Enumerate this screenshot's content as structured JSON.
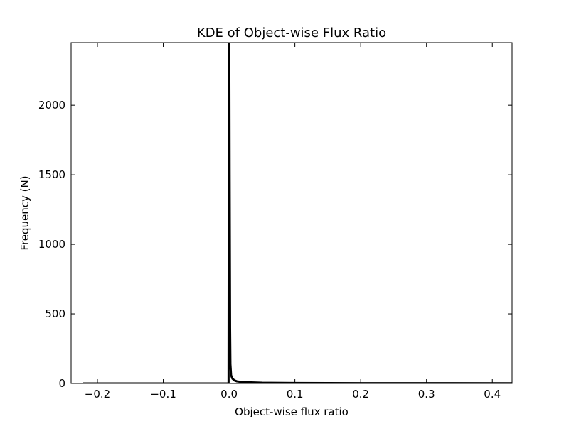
{
  "chart_data": {
    "type": "line",
    "title": "KDE of Object-wise Flux Ratio",
    "xlabel": "Object-wise flux ratio",
    "ylabel": "Frequency (N)",
    "xlim": [
      -0.24,
      0.43
    ],
    "ylim": [
      0,
      2450
    ],
    "x_ticks": [
      -0.2,
      -0.1,
      0.0,
      0.1,
      0.2,
      0.3,
      0.4
    ],
    "x_tick_labels": [
      "−0.2",
      "−0.1",
      "0.0",
      "0.1",
      "0.2",
      "0.3",
      "0.4"
    ],
    "y_ticks": [
      0,
      500,
      1000,
      1500,
      2000
    ],
    "y_tick_labels": [
      "0",
      "500",
      "1000",
      "1500",
      "2000"
    ],
    "grid": false,
    "legend": "none",
    "series": [
      {
        "color": "#000000",
        "x": [
          -0.222,
          -0.15,
          -0.1,
          -0.05,
          -0.01,
          -0.002,
          -0.0008,
          -0.0003,
          0.0,
          0.0003,
          0.0008,
          0.0015,
          0.002,
          0.003,
          0.005,
          0.008,
          0.012,
          0.02,
          0.03,
          0.05,
          0.1,
          0.2,
          0.3,
          0.43
        ],
        "y": [
          0,
          0,
          0,
          0,
          0,
          0,
          5,
          2400,
          2450,
          2450,
          1500,
          400,
          140,
          60,
          35,
          22,
          15,
          10,
          8,
          5,
          3,
          2,
          2,
          1
        ]
      }
    ]
  }
}
